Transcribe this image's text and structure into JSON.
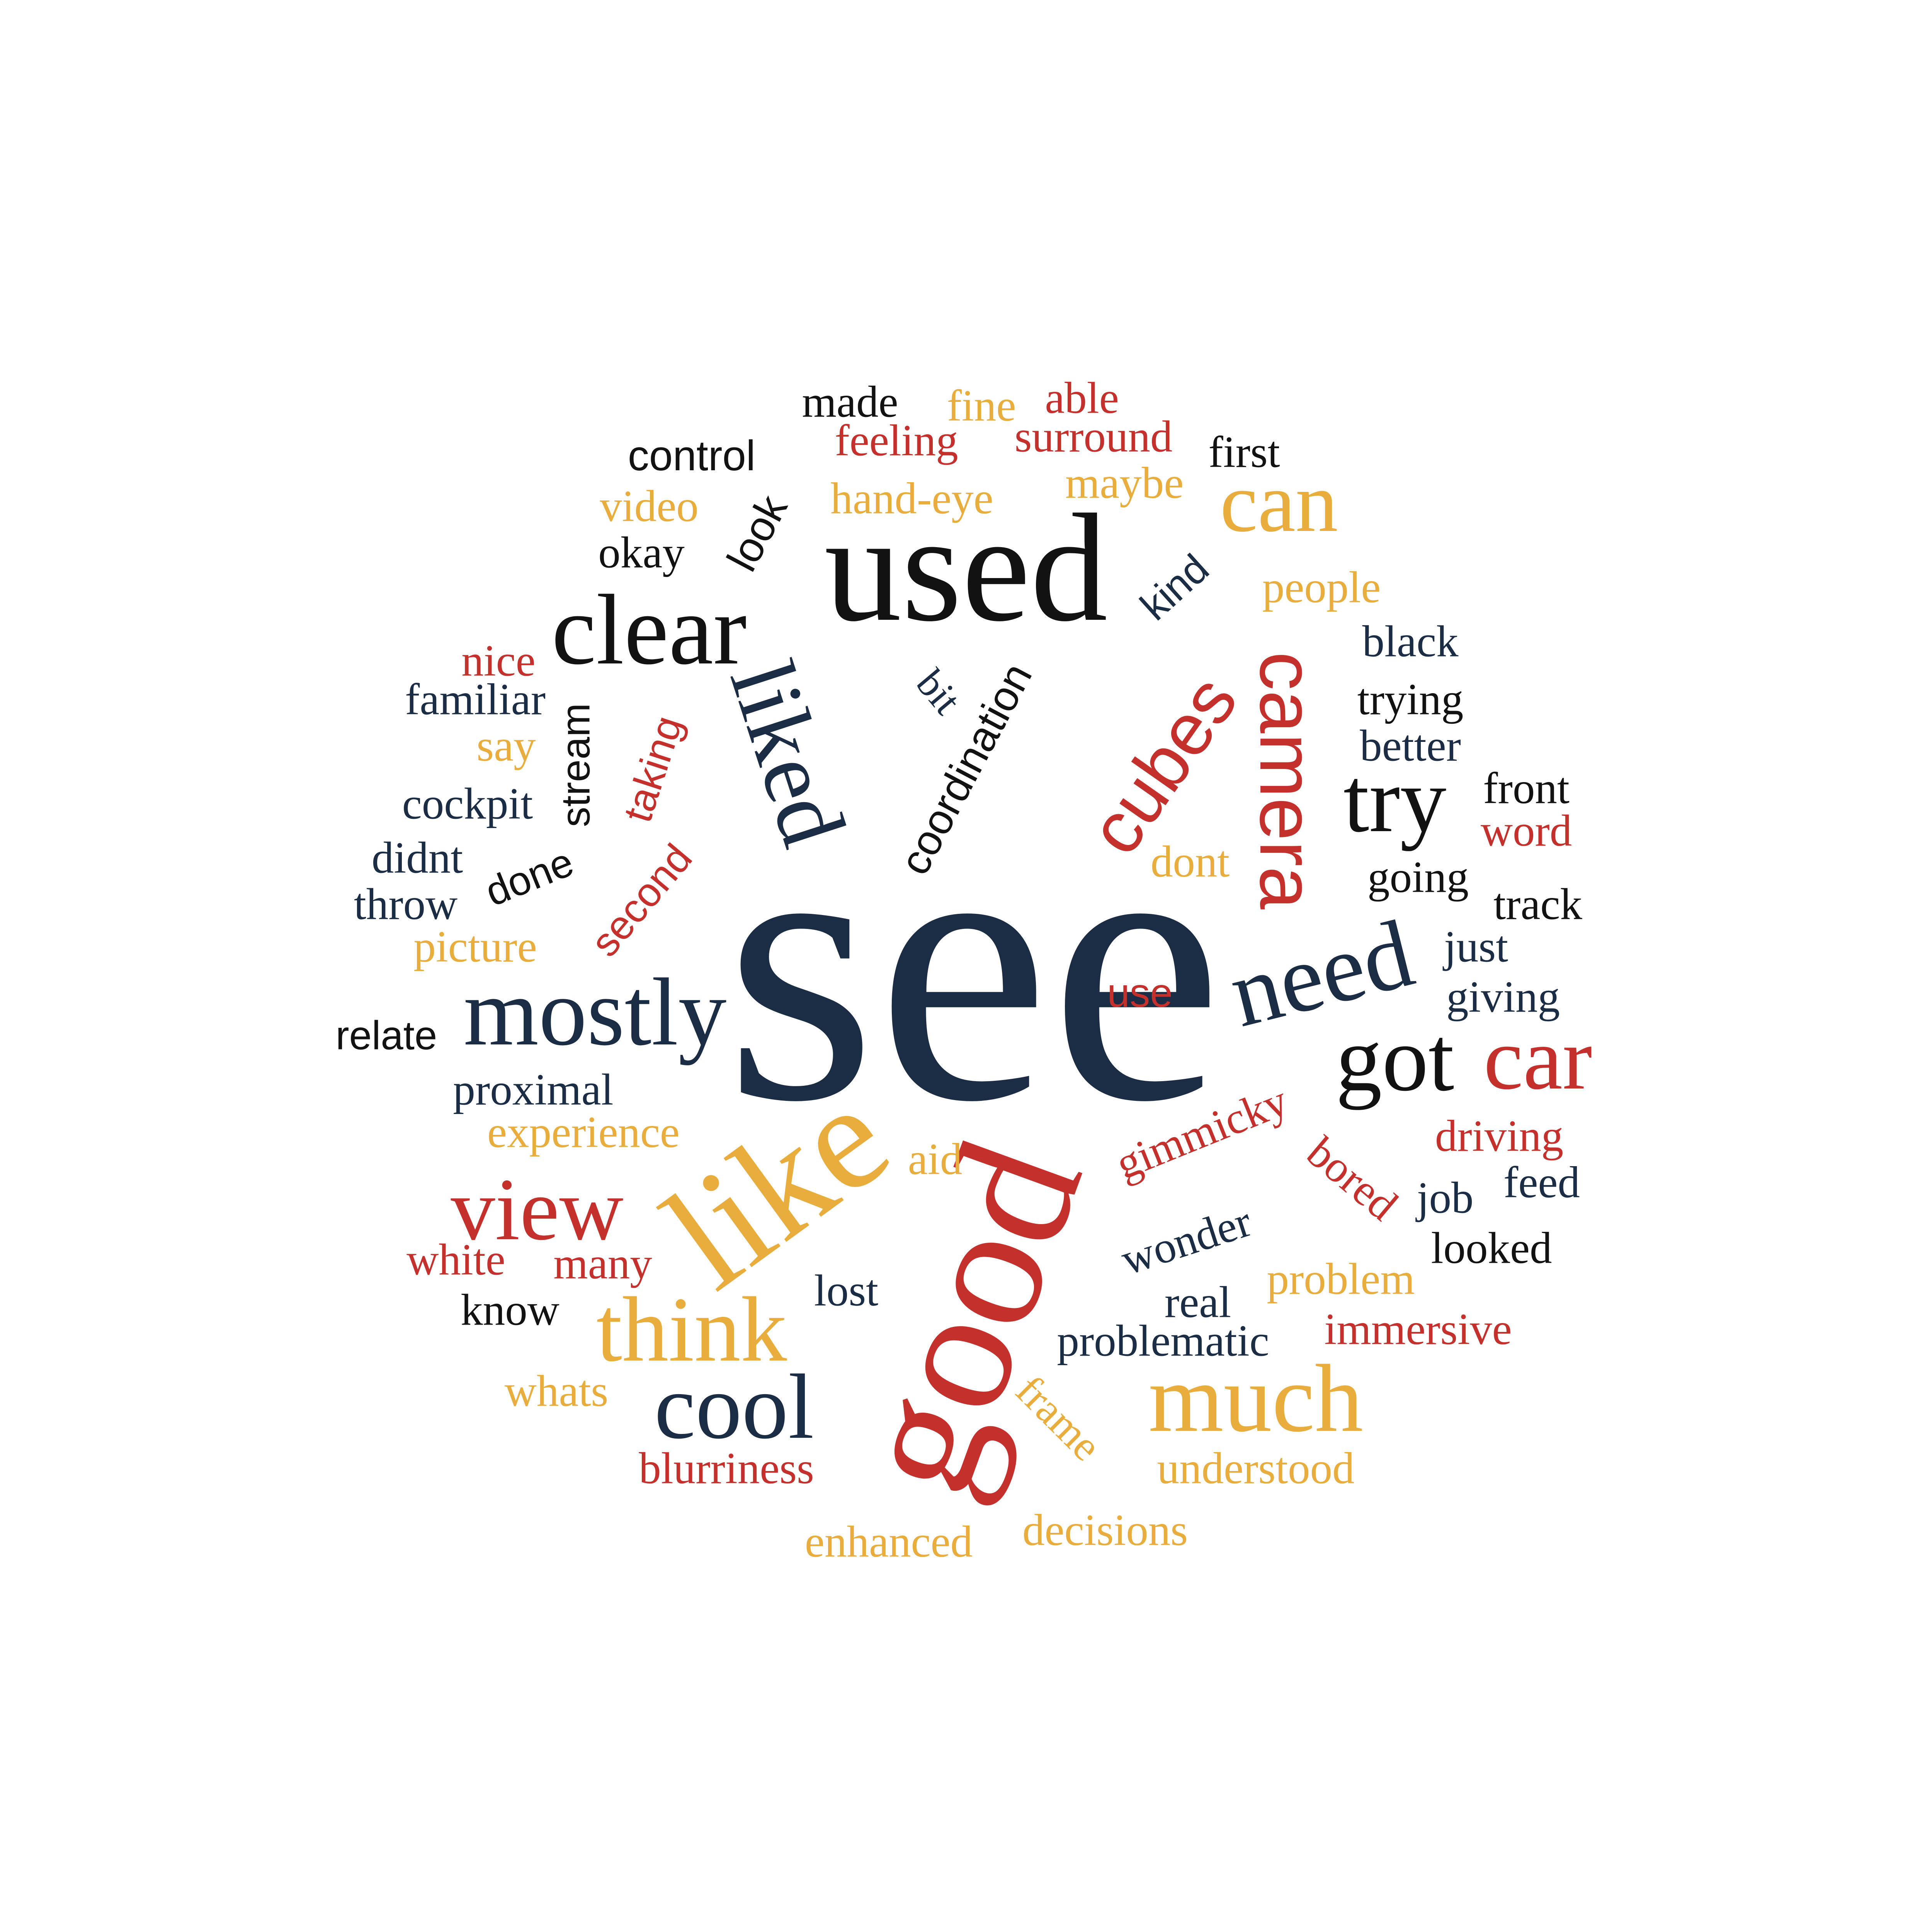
{
  "palette": {
    "navy": "#1b2d45",
    "black": "#121212",
    "red": "#c4302b",
    "gold": "#e8ad3d"
  },
  "words": [
    {
      "text": "see",
      "color": "navy"
    },
    {
      "text": "used",
      "color": "black"
    },
    {
      "text": "good",
      "color": "red"
    },
    {
      "text": "like",
      "color": "gold"
    },
    {
      "text": "clear",
      "color": "black"
    },
    {
      "text": "liked",
      "color": "navy"
    },
    {
      "text": "mostly",
      "color": "navy"
    },
    {
      "text": "need",
      "color": "navy"
    },
    {
      "text": "got",
      "color": "black"
    },
    {
      "text": "car",
      "color": "red"
    },
    {
      "text": "much",
      "color": "gold"
    },
    {
      "text": "think",
      "color": "gold"
    },
    {
      "text": "cool",
      "color": "navy"
    },
    {
      "text": "view",
      "color": "red"
    },
    {
      "text": "can",
      "color": "gold"
    },
    {
      "text": "camera",
      "color": "red"
    },
    {
      "text": "cubes",
      "color": "red"
    },
    {
      "text": "try",
      "color": "black"
    },
    {
      "text": "made",
      "color": "black"
    },
    {
      "text": "fine",
      "color": "gold"
    },
    {
      "text": "able",
      "color": "red"
    },
    {
      "text": "feeling",
      "color": "red"
    },
    {
      "text": "surround",
      "color": "red"
    },
    {
      "text": "first",
      "color": "black"
    },
    {
      "text": "control",
      "color": "black"
    },
    {
      "text": "maybe",
      "color": "gold"
    },
    {
      "text": "video",
      "color": "gold"
    },
    {
      "text": "look",
      "color": "black"
    },
    {
      "text": "hand-eye",
      "color": "gold"
    },
    {
      "text": "okay",
      "color": "black"
    },
    {
      "text": "kind",
      "color": "navy"
    },
    {
      "text": "people",
      "color": "gold"
    },
    {
      "text": "black",
      "color": "navy"
    },
    {
      "text": "nice",
      "color": "red"
    },
    {
      "text": "familiar",
      "color": "navy"
    },
    {
      "text": "bit",
      "color": "navy"
    },
    {
      "text": "coordination",
      "color": "black"
    },
    {
      "text": "trying",
      "color": "black"
    },
    {
      "text": "better",
      "color": "navy"
    },
    {
      "text": "say",
      "color": "gold"
    },
    {
      "text": "stream",
      "color": "black"
    },
    {
      "text": "taking",
      "color": "red"
    },
    {
      "text": "front",
      "color": "black"
    },
    {
      "text": "cockpit",
      "color": "navy"
    },
    {
      "text": "word",
      "color": "red"
    },
    {
      "text": "didnt",
      "color": "navy"
    },
    {
      "text": "dont",
      "color": "gold"
    },
    {
      "text": "done",
      "color": "black"
    },
    {
      "text": "throw",
      "color": "navy"
    },
    {
      "text": "going",
      "color": "black"
    },
    {
      "text": "track",
      "color": "black"
    },
    {
      "text": "second",
      "color": "red"
    },
    {
      "text": "picture",
      "color": "gold"
    },
    {
      "text": "just",
      "color": "navy"
    },
    {
      "text": "use",
      "color": "red"
    },
    {
      "text": "giving",
      "color": "navy"
    },
    {
      "text": "relate",
      "color": "black"
    },
    {
      "text": "proximal",
      "color": "navy"
    },
    {
      "text": "gimmicky",
      "color": "red"
    },
    {
      "text": "experience",
      "color": "gold"
    },
    {
      "text": "driving",
      "color": "red"
    },
    {
      "text": "aid",
      "color": "gold"
    },
    {
      "text": "bored",
      "color": "red"
    },
    {
      "text": "job",
      "color": "navy"
    },
    {
      "text": "feed",
      "color": "navy"
    },
    {
      "text": "wonder",
      "color": "navy"
    },
    {
      "text": "looked",
      "color": "black"
    },
    {
      "text": "white",
      "color": "red"
    },
    {
      "text": "many",
      "color": "red"
    },
    {
      "text": "problem",
      "color": "gold"
    },
    {
      "text": "know",
      "color": "black"
    },
    {
      "text": "lost",
      "color": "navy"
    },
    {
      "text": "real",
      "color": "navy"
    },
    {
      "text": "immersive",
      "color": "red"
    },
    {
      "text": "problematic",
      "color": "navy"
    },
    {
      "text": "whats",
      "color": "gold"
    },
    {
      "text": "frame",
      "color": "gold"
    },
    {
      "text": "blurriness",
      "color": "red"
    },
    {
      "text": "understood",
      "color": "gold"
    },
    {
      "text": "enhanced",
      "color": "gold"
    },
    {
      "text": "decisions",
      "color": "gold"
    }
  ]
}
